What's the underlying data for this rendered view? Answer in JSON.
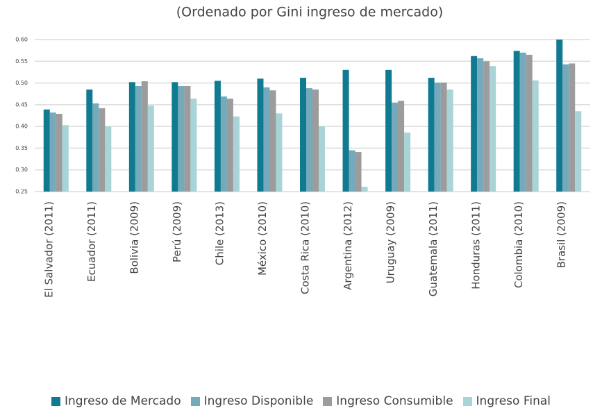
{
  "chart_data": {
    "type": "bar",
    "title": "(Ordenado por Gini ingreso de mercado)",
    "categories": [
      "El Salvador (2011)",
      "Ecuador (2011)",
      "Bolivia (2009)",
      "Perú (2009)",
      "Chile (2013)",
      "México (2010)",
      "Costa Rica (2010)",
      "Argentina (2012)",
      "Uruguay (2009)",
      "Guatemala (2011)",
      "Honduras (2011)",
      "Colombia (2010)",
      "Brasil (2009)"
    ],
    "series": [
      {
        "name": "Ingreso de Mercado",
        "color": "#0f7a90",
        "values": [
          0.439,
          0.485,
          0.502,
          0.502,
          0.505,
          0.51,
          0.512,
          0.53,
          0.53,
          0.512,
          0.562,
          0.574,
          0.6
        ]
      },
      {
        "name": "Ingreso Disponible",
        "color": "#74aabb",
        "values": [
          0.432,
          0.453,
          0.493,
          0.493,
          0.469,
          0.49,
          0.488,
          0.345,
          0.455,
          0.501,
          0.557,
          0.57,
          0.543
        ]
      },
      {
        "name": "Ingreso Consumible",
        "color": "#9c9c9c",
        "values": [
          0.429,
          0.442,
          0.504,
          0.493,
          0.464,
          0.483,
          0.485,
          0.341,
          0.459,
          0.501,
          0.55,
          0.565,
          0.545
        ]
      },
      {
        "name": "Ingreso Final",
        "color": "#a9d4d7",
        "values": [
          0.403,
          0.4,
          0.448,
          0.464,
          0.423,
          0.43,
          0.4,
          0.261,
          0.386,
          0.485,
          0.539,
          0.506,
          0.435
        ]
      }
    ],
    "ylim": [
      0.25,
      0.6
    ],
    "yticks": [
      0.25,
      {
        "value": 0.3,
        "label": "0.30"
      },
      0.35,
      {
        "value": 0.4,
        "label": "0.40"
      },
      0.45,
      {
        "value": 0.5,
        "label": "0.50"
      },
      0.55,
      {
        "value": 0.6,
        "label": "0.60"
      }
    ],
    "grid": true
  }
}
